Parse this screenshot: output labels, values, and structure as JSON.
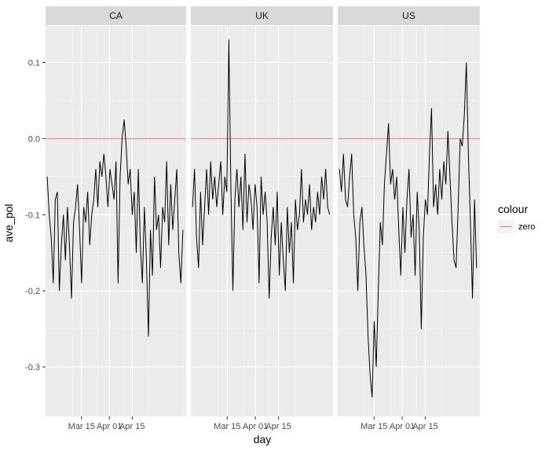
{
  "chart_data": {
    "type": "line",
    "facet_by": "country",
    "facets": [
      "CA",
      "UK",
      "US"
    ],
    "xlabel": "day",
    "ylabel": "ave_pol",
    "x_ticks": [
      "Mar 15",
      "Apr 01",
      "Apr 15"
    ],
    "y_ticks": [
      0.1,
      0.0,
      -0.1,
      -0.2,
      -0.3
    ],
    "y_tick_labels": [
      "0.1",
      "0.0",
      "-0.1",
      "-0.2",
      "-0.3"
    ],
    "ylim": [
      -0.365,
      0.148
    ],
    "xlim_days": [
      -1,
      85
    ],
    "grid": true,
    "legend": {
      "title": "colour",
      "position": "right",
      "items": [
        {
          "label": "zero",
          "color": "#F8766D"
        }
      ]
    },
    "reference_line": {
      "y": 0.0,
      "label": "zero",
      "color": "#F8766D"
    },
    "series": [
      {
        "facet": "CA",
        "x_start": "2020-03-08",
        "values": [
          -0.05,
          -0.1,
          -0.13,
          -0.19,
          -0.08,
          -0.07,
          -0.2,
          -0.14,
          -0.1,
          -0.16,
          -0.09,
          -0.14,
          -0.21,
          -0.11,
          -0.09,
          -0.06,
          -0.12,
          -0.19,
          -0.09,
          -0.11,
          -0.07,
          -0.14,
          -0.1,
          -0.08,
          -0.04,
          -0.09,
          -0.03,
          -0.05,
          -0.02,
          -0.05,
          -0.09,
          -0.04,
          -0.06,
          -0.08,
          -0.03,
          -0.19,
          -0.05,
          0.0,
          0.025,
          -0.01,
          -0.06,
          -0.04,
          -0.1,
          -0.07,
          -0.15,
          -0.04,
          -0.14,
          -0.19,
          -0.09,
          -0.16,
          -0.26,
          -0.12,
          -0.18,
          -0.05,
          -0.12,
          -0.1,
          -0.17,
          -0.09,
          -0.11,
          -0.03,
          -0.14,
          -0.06,
          -0.12,
          -0.08,
          -0.04,
          -0.15,
          -0.19,
          -0.12
        ]
      },
      {
        "facet": "UK",
        "x_start": "2020-03-08",
        "values": [
          -0.09,
          -0.04,
          -0.13,
          -0.17,
          -0.07,
          -0.14,
          -0.09,
          -0.04,
          -0.1,
          -0.03,
          -0.08,
          -0.05,
          -0.09,
          -0.06,
          -0.03,
          -0.1,
          -0.05,
          -0.07,
          0.13,
          -0.06,
          -0.2,
          -0.08,
          -0.04,
          -0.09,
          -0.05,
          -0.12,
          -0.02,
          -0.11,
          -0.06,
          -0.08,
          -0.12,
          -0.06,
          -0.09,
          -0.19,
          -0.05,
          -0.1,
          -0.07,
          -0.11,
          -0.21,
          -0.13,
          -0.09,
          -0.14,
          -0.07,
          -0.18,
          -0.11,
          -0.16,
          -0.2,
          -0.09,
          -0.15,
          -0.11,
          -0.19,
          -0.08,
          -0.12,
          -0.1,
          -0.04,
          -0.11,
          -0.08,
          -0.1,
          -0.06,
          -0.12,
          -0.09,
          -0.11,
          -0.07,
          -0.1,
          -0.05,
          -0.08,
          -0.04,
          -0.09,
          -0.1
        ]
      },
      {
        "facet": "US",
        "x_start": "2020-03-08",
        "values": [
          -0.04,
          -0.07,
          -0.02,
          -0.08,
          -0.09,
          -0.05,
          -0.02,
          -0.1,
          -0.13,
          -0.2,
          -0.11,
          -0.09,
          -0.14,
          -0.18,
          -0.26,
          -0.31,
          -0.34,
          -0.24,
          -0.3,
          -0.2,
          -0.11,
          -0.14,
          -0.06,
          -0.02,
          0.02,
          -0.06,
          -0.04,
          -0.08,
          -0.05,
          -0.12,
          -0.18,
          -0.09,
          -0.15,
          -0.08,
          -0.04,
          -0.13,
          -0.1,
          -0.18,
          -0.07,
          -0.12,
          -0.25,
          -0.13,
          -0.08,
          -0.1,
          -0.02,
          0.04,
          -0.09,
          -0.06,
          -0.1,
          -0.04,
          -0.08,
          -0.03,
          -0.06,
          0.01,
          -0.05,
          -0.11,
          -0.16,
          -0.17,
          -0.09,
          0.0,
          -0.01,
          0.03,
          0.1,
          -0.02,
          -0.11,
          -0.21,
          -0.08,
          -0.17
        ]
      }
    ]
  }
}
